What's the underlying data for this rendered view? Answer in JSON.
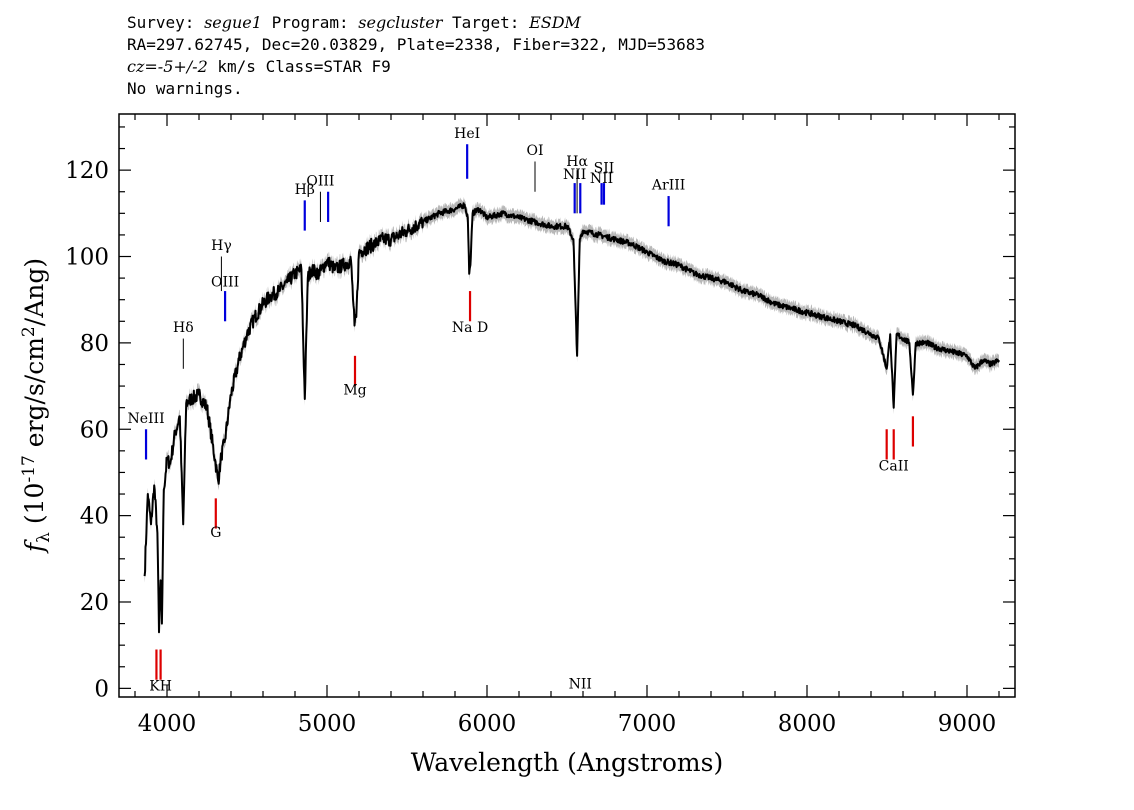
{
  "header": {
    "survey_label": "Survey:",
    "survey": "segue1",
    "program_label": "Program:",
    "program": "segcluster",
    "target_label": "Target:",
    "target": "ESDM",
    "coords_line": "RA=297.62745, Dec=20.03829, Plate=2338, Fiber=322, MJD=53683",
    "cz_label": "cz=",
    "cz_value": "-5+/-2",
    "cz_unit": "km/s",
    "class_text": "Class=STAR F9",
    "warnings": "No warnings."
  },
  "colors": {
    "emission": "#0000dd",
    "absorption": "#dd0000",
    "spectrum": "#000000",
    "error_band": "#b8b8b8"
  },
  "chart_data": {
    "type": "line",
    "xlabel": "Wavelength (Angstroms)",
    "ylabel": "f_λ (10^-17 erg/s/cm^2/Ang)",
    "xlim": [
      3700,
      9300
    ],
    "ylim": [
      -2,
      133
    ],
    "xticks": [
      4000,
      5000,
      6000,
      7000,
      8000,
      9000
    ],
    "yticks": [
      0,
      20,
      40,
      60,
      80,
      100,
      120
    ],
    "grid": false,
    "series": [
      {
        "x": [
          3860,
          3880,
          3900,
          3920,
          3940,
          3950,
          3960,
          3968,
          3980,
          4000,
          4020,
          4050,
          4080,
          4101,
          4120,
          4150,
          4200,
          4250,
          4300,
          4320,
          4340,
          4360,
          4400,
          4450,
          4500,
          4550,
          4600,
          4650,
          4700,
          4750,
          4800,
          4840,
          4861,
          4880,
          4900,
          4950,
          5000,
          5050,
          5100,
          5150,
          5172,
          5183,
          5200,
          5250,
          5300,
          5350,
          5400,
          5450,
          5500,
          5600,
          5700,
          5800,
          5860,
          5880,
          5889,
          5896,
          5910,
          5950,
          6000,
          6100,
          6200,
          6300,
          6400,
          6500,
          6540,
          6563,
          6580,
          6600,
          6700,
          6800,
          6900,
          7000,
          7100,
          7200,
          7300,
          7400,
          7500,
          7600,
          7700,
          7800,
          7900,
          8000,
          8100,
          8200,
          8300,
          8400,
          8450,
          8498,
          8520,
          8542,
          8560,
          8600,
          8640,
          8662,
          8680,
          8750,
          8800,
          8900,
          9000,
          9050,
          9100,
          9150,
          9200
        ],
        "y": [
          26,
          45,
          38,
          47,
          36,
          13,
          25,
          15,
          46,
          53,
          52,
          59,
          63,
          38,
          66,
          67,
          68,
          65,
          53,
          48,
          54,
          57,
          68,
          76,
          82,
          86,
          89,
          91,
          92,
          94,
          96,
          97,
          67,
          95,
          97,
          96,
          99,
          97,
          98,
          99,
          84,
          86,
          101,
          102,
          103,
          104,
          104,
          105,
          106,
          108,
          110,
          111,
          112,
          109,
          96,
          98,
          110,
          111,
          109,
          110,
          109,
          108,
          107,
          107,
          104,
          77,
          104,
          106,
          105,
          104,
          103,
          101,
          99,
          98,
          96,
          95,
          94,
          92,
          91,
          89,
          88,
          87,
          86,
          85,
          84,
          82,
          81,
          74,
          82,
          65,
          82,
          81,
          80,
          68,
          80,
          80,
          79,
          78,
          77,
          74,
          76,
          75,
          76
        ]
      }
    ],
    "error_band_width": 1.5,
    "line_markers": [
      {
        "label": "NeIII",
        "x": 3869,
        "y_top": 60,
        "y_bottom": 53,
        "label_y": 61.5,
        "kind": "emission"
      },
      {
        "label": "Hδ",
        "x": 4102,
        "y_top": 81,
        "y_bottom": 74,
        "label_y": 82.5,
        "kind": "emission_thin"
      },
      {
        "label": "Hγ",
        "x": 4340,
        "y_top": 100,
        "y_bottom": 92,
        "label_y": 101.5,
        "kind": "emission_thin"
      },
      {
        "label": "OIII",
        "x": 4363,
        "y_top": 92,
        "y_bottom": 85,
        "label_y": 93,
        "kind": "emission"
      },
      {
        "label": "Hβ",
        "x": 4861,
        "y_top": 113,
        "y_bottom": 106,
        "label_y": 114.5,
        "kind": "emission"
      },
      {
        "label": "OIII",
        "x": 4959,
        "y_top": 115,
        "y_bottom": 108,
        "label_y": 116.5,
        "kind": "emission_thin"
      },
      {
        "label": "",
        "x": 5007,
        "y_top": 115,
        "y_bottom": 108,
        "label_y": 0,
        "kind": "emission"
      },
      {
        "label": "HeI",
        "x": 5876,
        "y_top": 126,
        "y_bottom": 118,
        "label_y": 127.5,
        "kind": "emission"
      },
      {
        "label": "OI",
        "x": 6300,
        "y_top": 122,
        "y_bottom": 115,
        "label_y": 123.5,
        "kind": "emission_thin"
      },
      {
        "label": "NII",
        "x": 6548,
        "y_top": 117,
        "y_bottom": 110,
        "label_y": 118,
        "kind": "emission"
      },
      {
        "label": "Hα",
        "x": 6563,
        "y_top": 120,
        "y_bottom": 110,
        "label_y": 121,
        "kind": "emission_thin"
      },
      {
        "label": "NII",
        "x": 6583,
        "y_top": 117,
        "y_bottom": 110,
        "label_y": 0,
        "kind": "emission"
      },
      {
        "label": "NII",
        "x": 6716,
        "y_top": 117,
        "y_bottom": 112,
        "label_y": 117,
        "kind": "emission"
      },
      {
        "label": "SII",
        "x": 6731,
        "y_top": 117,
        "y_bottom": 112,
        "label_y": 119.5,
        "kind": "emission"
      },
      {
        "label": "ArIII",
        "x": 7135,
        "y_top": 114,
        "y_bottom": 107,
        "label_y": 115.5,
        "kind": "emission"
      },
      {
        "label": "",
        "x": 3934,
        "y_top": 9,
        "y_bottom": 2,
        "label_y": 0,
        "kind": "absorption"
      },
      {
        "label": "KH",
        "x": 3960,
        "y_top": 9,
        "y_bottom": 2,
        "label_y": -0.5,
        "kind": "absorption"
      },
      {
        "label": "G",
        "x": 4305,
        "y_top": 44,
        "y_bottom": 37,
        "label_y": 35,
        "kind": "absorption"
      },
      {
        "label": "Mg",
        "x": 5175,
        "y_top": 77,
        "y_bottom": 70,
        "label_y": 68,
        "kind": "absorption"
      },
      {
        "label": "Na D",
        "x": 5894,
        "y_top": 92,
        "y_bottom": 85,
        "label_y": 82.5,
        "kind": "absorption"
      },
      {
        "label": "",
        "x": 8498,
        "y_top": 60,
        "y_bottom": 53,
        "label_y": 0,
        "kind": "absorption"
      },
      {
        "label": "CaII",
        "x": 8542,
        "y_top": 60,
        "y_bottom": 53,
        "label_y": 50.5,
        "kind": "absorption"
      },
      {
        "label": "",
        "x": 8662,
        "y_top": 63,
        "y_bottom": 56,
        "label_y": 0,
        "kind": "absorption"
      }
    ]
  }
}
